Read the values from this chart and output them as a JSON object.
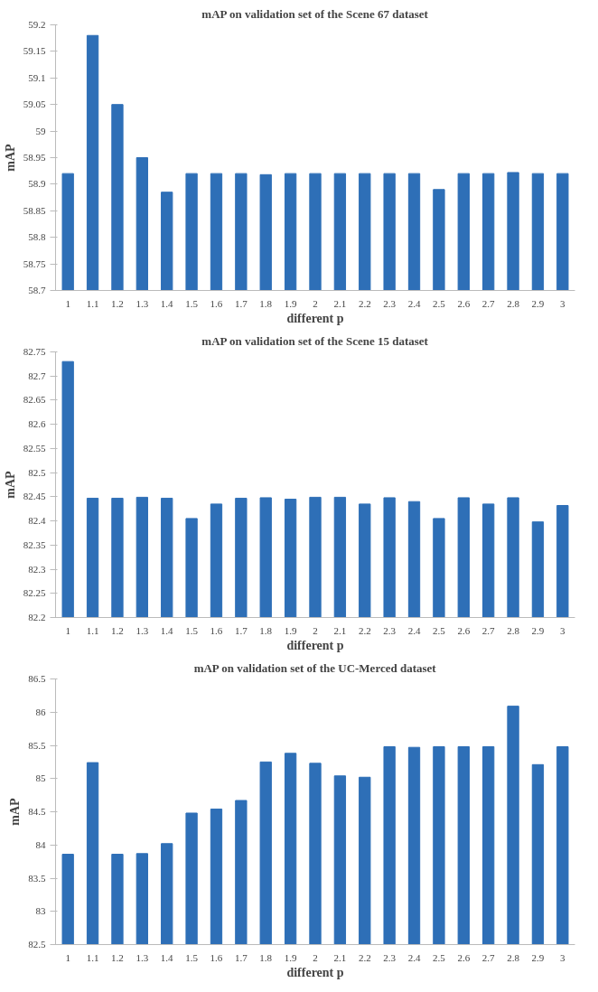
{
  "chart_data": [
    {
      "type": "bar",
      "title": "mAP on validation set of the Scene 67 dataset",
      "xlabel": "different p",
      "ylabel": "mAP",
      "categories": [
        "1",
        "1.1",
        "1.2",
        "1.3",
        "1.4",
        "1.5",
        "1.6",
        "1.7",
        "1.8",
        "1.9",
        "2",
        "2.1",
        "2.2",
        "2.3",
        "2.4",
        "2.5",
        "2.6",
        "2.7",
        "2.8",
        "2.9",
        "3"
      ],
      "color": "#2e6fb7",
      "values": [
        58.92,
        59.18,
        59.05,
        58.95,
        58.885,
        58.92,
        58.92,
        58.92,
        58.918,
        58.92,
        58.92,
        58.92,
        58.92,
        58.92,
        58.92,
        58.89,
        58.92,
        58.92,
        58.922,
        58.92,
        58.92
      ],
      "ylim": [
        58.7,
        59.2
      ],
      "yticks": [
        58.7,
        58.75,
        58.8,
        58.85,
        58.9,
        58.95,
        59,
        59.05,
        59.1,
        59.15,
        59.2
      ],
      "grid": false
    },
    {
      "type": "bar",
      "title": "mAP on validation set of the Scene 15 dataset",
      "xlabel": "different p",
      "ylabel": "mAP",
      "categories": [
        "1",
        "1.1",
        "1.2",
        "1.3",
        "1.4",
        "1.5",
        "1.6",
        "1.7",
        "1.8",
        "1.9",
        "2",
        "2.1",
        "2.2",
        "2.3",
        "2.4",
        "2.5",
        "2.6",
        "2.7",
        "2.8",
        "2.9",
        "3"
      ],
      "color": "#2e6fb7",
      "values": [
        82.73,
        82.447,
        82.447,
        82.449,
        82.447,
        82.405,
        82.435,
        82.447,
        82.448,
        82.445,
        82.449,
        82.449,
        82.435,
        82.448,
        82.44,
        82.405,
        82.448,
        82.435,
        82.448,
        82.398,
        82.432
      ],
      "ylim": [
        82.2,
        82.75
      ],
      "yticks": [
        82.2,
        82.25,
        82.3,
        82.35,
        82.4,
        82.45,
        82.5,
        82.55,
        82.6,
        82.65,
        82.7,
        82.75
      ],
      "grid": false
    },
    {
      "type": "bar",
      "title": "mAP on validation set of the UC-Merced dataset",
      "xlabel": "different p",
      "ylabel": "mAP",
      "categories": [
        "1",
        "1.1",
        "1.2",
        "1.3",
        "1.4",
        "1.5",
        "1.6",
        "1.7",
        "1.8",
        "1.9",
        "2",
        "2.1",
        "2.2",
        "2.3",
        "2.4",
        "2.5",
        "2.6",
        "2.7",
        "2.8",
        "2.9",
        "3"
      ],
      "color": "#2e6fb7",
      "values": [
        83.86,
        85.24,
        83.86,
        83.87,
        84.02,
        84.48,
        84.54,
        84.67,
        85.25,
        85.38,
        85.23,
        85.04,
        85.02,
        85.48,
        85.47,
        85.48,
        85.48,
        85.48,
        86.09,
        85.21,
        85.48
      ],
      "ylim": [
        82.5,
        86.5
      ],
      "yticks": [
        82.5,
        83,
        83.5,
        84,
        84.5,
        85,
        85.5,
        86,
        86.5
      ],
      "grid": false
    }
  ]
}
